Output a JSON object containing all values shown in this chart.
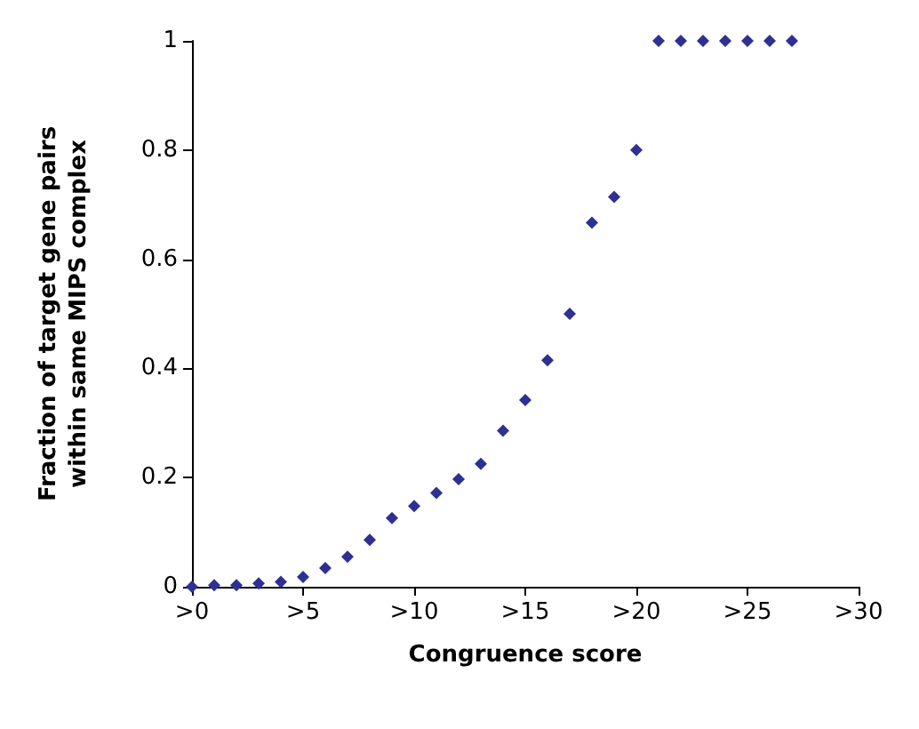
{
  "chart_data": {
    "type": "scatter",
    "xlabel": "Congruence score",
    "ylabel": "Fraction of target gene pairs\nwithin same MIPS complex",
    "categories": [
      ">0",
      null,
      null,
      null,
      null,
      ">5",
      null,
      null,
      null,
      null,
      ">10",
      null,
      null,
      null,
      null,
      ">15",
      null,
      null,
      null,
      null,
      ">20",
      null,
      null,
      null,
      null,
      ">25",
      null,
      null,
      null,
      null,
      ">30"
    ],
    "series": [
      {
        "color": "#2e3192",
        "values": [
          0,
          0.003,
          0.003,
          0.006,
          0.009,
          0.018,
          0.034,
          0.055,
          0.086,
          0.126,
          0.148,
          0.172,
          0.197,
          0.225,
          0.286,
          0.342,
          0.415,
          0.5,
          0.667,
          0.714,
          0.8,
          1,
          1,
          1,
          1,
          1,
          1,
          1,
          null,
          null,
          null
        ]
      }
    ],
    "ylim": [
      0,
      1
    ],
    "yticks": [
      0,
      0.2,
      0.4,
      0.6,
      0.8,
      1
    ],
    "grid": false,
    "marker": "diamond"
  }
}
